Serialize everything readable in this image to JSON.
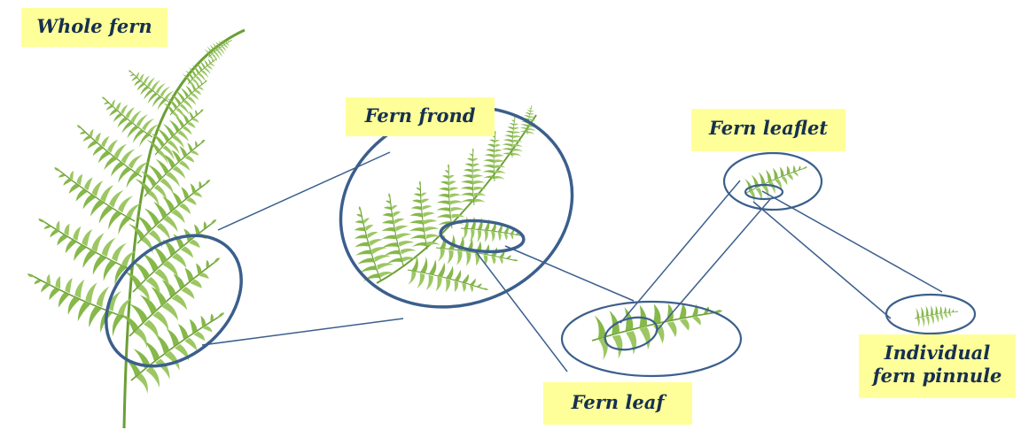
{
  "labels": {
    "whole_fern": "Whole fern",
    "fern_frond": "Fern frond",
    "fern_leaflet": "Fern leaflet",
    "fern_leaf": "Fern leaf",
    "pinnule_line1": "Individual",
    "pinnule_line2": "fern pinnule"
  },
  "colors": {
    "label_background": "#ffff99",
    "label_text": "#17304f",
    "outline": "#3b5f8c",
    "leaf_green": "#7fb043"
  }
}
